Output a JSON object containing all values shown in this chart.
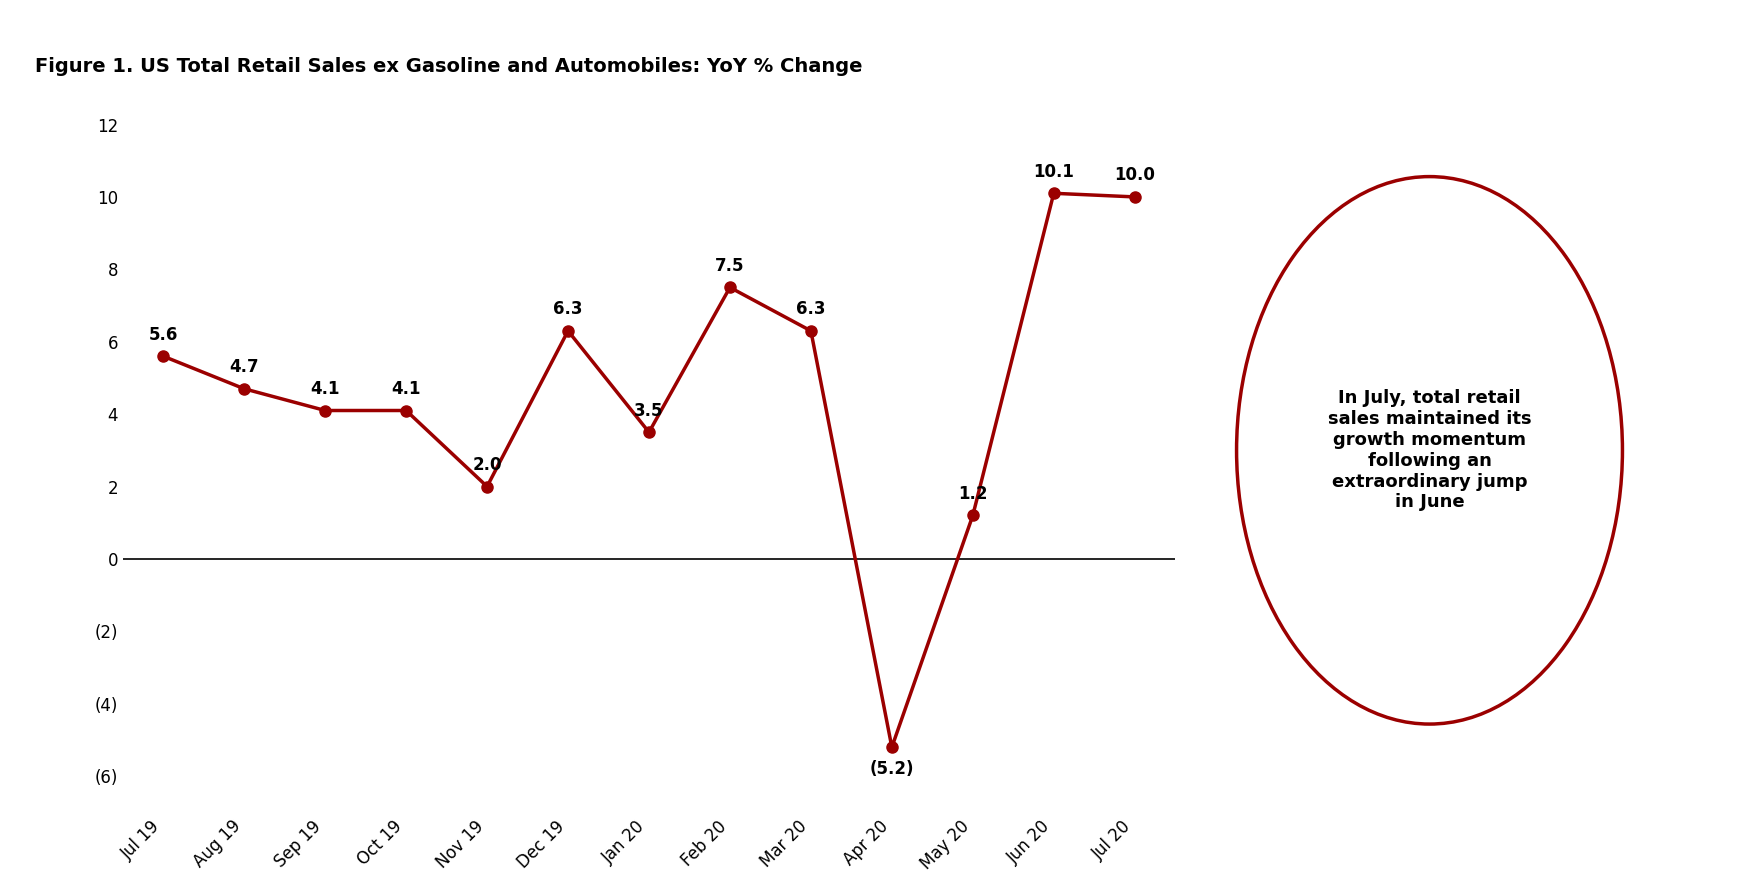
{
  "title": "Figure 1. US Total Retail Sales ex Gasoline and Automobiles: YoY % Change",
  "categories": [
    "Jul 19",
    "Aug 19",
    "Sep 19",
    "Oct 19",
    "Nov 19",
    "Dec 19",
    "Jan 20",
    "Feb 20",
    "Mar 20",
    "Apr 20",
    "May 20",
    "Jun 20",
    "Jul 20"
  ],
  "values": [
    5.6,
    4.7,
    4.1,
    4.1,
    2.0,
    6.3,
    3.5,
    7.5,
    6.3,
    -5.2,
    1.2,
    10.1,
    10.0
  ],
  "line_color": "#9B0000",
  "marker_color": "#9B0000",
  "ylim": [
    -7,
    13
  ],
  "yticks": [
    -6,
    -4,
    -2,
    0,
    2,
    4,
    6,
    8,
    10,
    12
  ],
  "ytick_labels": [
    "(6)",
    "(4)",
    "(2)",
    "0",
    "2",
    "4",
    "6",
    "8",
    "10",
    "12"
  ],
  "circle_text": "In July, total retail\nsales maintained its\ngrowth momentum\nfollowing an\nextraordinary jump\nin June",
  "circle_color": "#9B0000",
  "title_fontsize": 14,
  "background_color": "#ffffff"
}
